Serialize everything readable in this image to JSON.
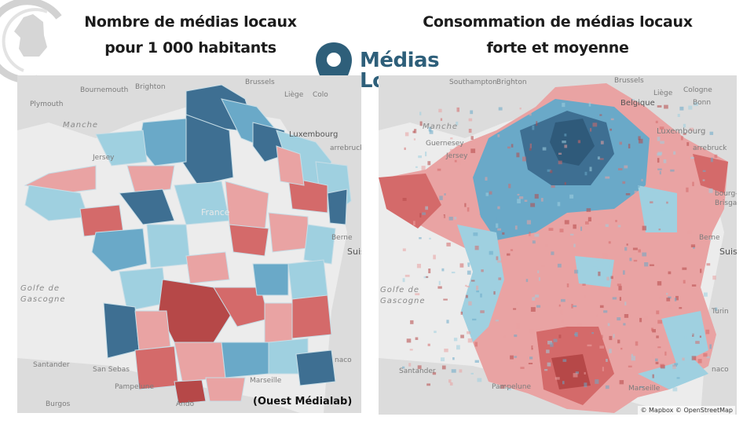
{
  "titles": {
    "left_line1": "Nombre de médias locaux",
    "left_line2": "pour 1 000 habitants",
    "right_line1": "Consommation de médias locaux",
    "right_line2": "forte et moyenne"
  },
  "brand": {
    "line1": "Médias",
    "line2": "Locaux",
    "icon": "map-pin-icon",
    "color": "#2e5f7a"
  },
  "credit": "(Ouest Médialab)",
  "attribution": "© Mapbox © OpenStreetMap",
  "colors": {
    "dark_blue": "#3e6f92",
    "mid_blue": "#6aa9c8",
    "light_blue": "#9fd0e0",
    "light_red": "#e9a3a3",
    "mid_red": "#d46a6a",
    "dark_red": "#b64848",
    "land": "#dcdcdc",
    "sea": "#ececec"
  },
  "left_map_labels": {
    "manche": "Manche",
    "golfe1": "Golfe de",
    "golfe2": "Gascogne",
    "plymouth": "Plymouth",
    "bournemouth": "Bournemouth",
    "brighton": "Brighton",
    "brussels": "Brussels",
    "liege": "Liège",
    "colo": "Colo",
    "jersey": "Jersey",
    "luxembourg": "Luxembourg",
    "saarbruck": "arrebruck",
    "france": "France",
    "berne": "Berne",
    "suis": "Suis",
    "santander": "Santander",
    "pamplune": "Pampelune",
    "burgos": "Burgos",
    "marseille": "Marseille",
    "ando": "Ando",
    "naco": "naco",
    "sebas": "San Sebas"
  },
  "right_map_labels": {
    "manche": "Manche",
    "golfe1": "Golfe de",
    "golfe2": "Gascogne",
    "southampton": "Southampton",
    "brighton": "Brighton",
    "brussels": "Brussels",
    "cologne": "Cologne",
    "guernesey": "Guernesey",
    "jersey": "Jersey",
    "belgique": "Belgique",
    "luxembourg": "Luxembourg",
    "saarbruck": "arrebruck",
    "bourg": "bourg-",
    "brisgau": "Brisgau",
    "berne": "Berne",
    "suis": "Suis",
    "turin": "Turin",
    "santander": "Santander",
    "pamplune": "Pampelune",
    "marseille": "Marseille",
    "naco": "naco",
    "liege": "Liège",
    "bonn": "Bonn"
  }
}
